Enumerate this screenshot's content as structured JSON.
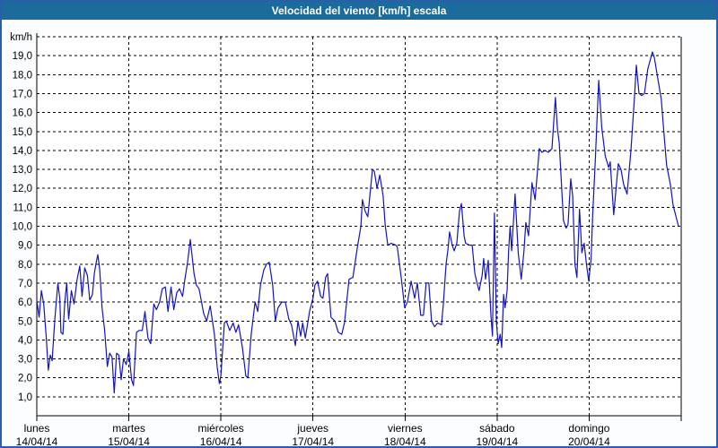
{
  "window": {
    "title": "Velocidad del viento [km/h] escala"
  },
  "colors": {
    "titlebar_bg": "#1c6b9d",
    "titlebar_text": "#ffffff",
    "frame_border": "#2b5dab",
    "page_bg": "#fbfdfe",
    "plot_bg": "#ffffff",
    "grid": "#000000",
    "line": "#1414bb",
    "label_text": "#000000"
  },
  "chart_data": {
    "type": "line",
    "title": "Velocidad del viento [km/h] escala",
    "y_unit_label": "km/h",
    "ylim": [
      0,
      20
    ],
    "xlim_hours": [
      0,
      168
    ],
    "grid": "dashed horizontal every 1 km/h, dashed vertical at each midnight",
    "legend_position": "none",
    "y_ticks": [
      {
        "value": 19,
        "label": "19,0"
      },
      {
        "value": 18,
        "label": "18,0"
      },
      {
        "value": 17,
        "label": "17,0"
      },
      {
        "value": 16,
        "label": "16,0"
      },
      {
        "value": 15,
        "label": "15,0"
      },
      {
        "value": 14,
        "label": "14,0"
      },
      {
        "value": 13,
        "label": "13,0"
      },
      {
        "value": 12,
        "label": "12,0"
      },
      {
        "value": 11,
        "label": "11,0"
      },
      {
        "value": 10,
        "label": "10,0"
      },
      {
        "value": 9,
        "label": "9,0"
      },
      {
        "value": 8,
        "label": "8,0"
      },
      {
        "value": 7,
        "label": "7,0"
      },
      {
        "value": 6,
        "label": "6,0"
      },
      {
        "value": 5,
        "label": "5,0"
      },
      {
        "value": 4,
        "label": "4,0"
      },
      {
        "value": 3,
        "label": "3,0"
      },
      {
        "value": 2,
        "label": "2,0"
      },
      {
        "value": 1,
        "label": "1,0"
      }
    ],
    "days": [
      {
        "name": "lunes",
        "date": "14/04/14"
      },
      {
        "name": "martes",
        "date": "15/04/14"
      },
      {
        "name": "miércoles",
        "date": "16/04/14"
      },
      {
        "name": "jueves",
        "date": "17/04/14"
      },
      {
        "name": "viernes",
        "date": "18/04/14"
      },
      {
        "name": "sábado",
        "date": "19/04/14"
      },
      {
        "name": "domingo",
        "date": "20/04/14"
      }
    ],
    "series": [
      {
        "name": "velocidad del viento",
        "unit": "km/h",
        "color": "#1414bb",
        "points_hour_value": [
          [
            0,
            6.1
          ],
          [
            0.6,
            5.2
          ],
          [
            1.2,
            6.6
          ],
          [
            1.8,
            5.9
          ],
          [
            2.4,
            4.3
          ],
          [
            3,
            2.4
          ],
          [
            3.5,
            3.2
          ],
          [
            4,
            2.9
          ],
          [
            4.7,
            5.1
          ],
          [
            5.5,
            7.0
          ],
          [
            6,
            6.2
          ],
          [
            6.3,
            4.4
          ],
          [
            6.8,
            4.3
          ],
          [
            7.3,
            6.0
          ],
          [
            7.8,
            7.0
          ],
          [
            8.3,
            5.1
          ],
          [
            9,
            6.6
          ],
          [
            9.7,
            5.9
          ],
          [
            10.5,
            7.2
          ],
          [
            11.2,
            7.9
          ],
          [
            11.8,
            6.3
          ],
          [
            12.5,
            7.8
          ],
          [
            13.2,
            7.4
          ],
          [
            13.8,
            6.1
          ],
          [
            14.5,
            6.4
          ],
          [
            15,
            7.5
          ],
          [
            15.5,
            8.1
          ],
          [
            15.9,
            8.5
          ],
          [
            16.4,
            7.7
          ],
          [
            17,
            5.7
          ],
          [
            17.7,
            4.5
          ],
          [
            18.4,
            2.6
          ],
          [
            19,
            3.3
          ],
          [
            19.6,
            3.1
          ],
          [
            20.2,
            1.2
          ],
          [
            20.8,
            3.3
          ],
          [
            21.4,
            3.2
          ],
          [
            22,
            1.9
          ],
          [
            22.6,
            3.0
          ],
          [
            23.3,
            2.7
          ],
          [
            24,
            3.4
          ],
          [
            24.7,
            1.9
          ],
          [
            25.2,
            1.6
          ],
          [
            26,
            4.4
          ],
          [
            26.7,
            4.5
          ],
          [
            27.5,
            4.5
          ],
          [
            28.2,
            5.5
          ],
          [
            29,
            4.1
          ],
          [
            29.7,
            3.8
          ],
          [
            30.5,
            5.9
          ],
          [
            31.2,
            5.6
          ],
          [
            32,
            6.0
          ],
          [
            32.7,
            6.7
          ],
          [
            33.5,
            6.8
          ],
          [
            34.2,
            5.5
          ],
          [
            35,
            6.8
          ],
          [
            35.7,
            5.6
          ],
          [
            36.5,
            6.5
          ],
          [
            37.2,
            6.7
          ],
          [
            38,
            6.3
          ],
          [
            38.6,
            7.2
          ],
          [
            39.3,
            8.1
          ],
          [
            40,
            9.3
          ],
          [
            41,
            7.5
          ],
          [
            41.6,
            6.9
          ],
          [
            42.3,
            6.7
          ],
          [
            43.5,
            5.4
          ],
          [
            44.3,
            5.0
          ],
          [
            45.2,
            5.8
          ],
          [
            46.3,
            4.3
          ],
          [
            47,
            2.6
          ],
          [
            47.6,
            1.7
          ],
          [
            48,
            2.1
          ],
          [
            48.9,
            4.9
          ],
          [
            49.4,
            5.0
          ],
          [
            50.3,
            4.5
          ],
          [
            51.2,
            4.9
          ],
          [
            51.9,
            4.4
          ],
          [
            52.6,
            4.8
          ],
          [
            53.6,
            3.6
          ],
          [
            54.5,
            2.1
          ],
          [
            55,
            2.0
          ],
          [
            55.9,
            4.3
          ],
          [
            56.9,
            6.0
          ],
          [
            57.6,
            5.5
          ],
          [
            58.3,
            6.9
          ],
          [
            59.2,
            7.7
          ],
          [
            59.9,
            8.0
          ],
          [
            60.6,
            8.1
          ],
          [
            61.5,
            6.9
          ],
          [
            62.2,
            5.0
          ],
          [
            62.9,
            5.7
          ],
          [
            63.9,
            6.0
          ],
          [
            64.8,
            6.0
          ],
          [
            65.7,
            5.1
          ],
          [
            66.4,
            4.8
          ],
          [
            67.4,
            3.7
          ],
          [
            68.1,
            5.0
          ],
          [
            68.8,
            4.2
          ],
          [
            69.3,
            4.9
          ],
          [
            70,
            4.1
          ],
          [
            71.1,
            5.5
          ],
          [
            72,
            6.2
          ],
          [
            72.5,
            6.9
          ],
          [
            73.2,
            7.1
          ],
          [
            74,
            6.3
          ],
          [
            74.6,
            6.2
          ],
          [
            75.3,
            7.3
          ],
          [
            75.8,
            7.5
          ],
          [
            76.7,
            5.2
          ],
          [
            77.7,
            5.0
          ],
          [
            78.6,
            4.4
          ],
          [
            79.5,
            4.3
          ],
          [
            80.2,
            4.9
          ],
          [
            81.4,
            7.2
          ],
          [
            82.4,
            7.3
          ],
          [
            83.5,
            8.8
          ],
          [
            84.5,
            10.0
          ],
          [
            84.9,
            11.4
          ],
          [
            85.6,
            10.8
          ],
          [
            86.3,
            10.5
          ],
          [
            87.5,
            13.0
          ],
          [
            88,
            12.9
          ],
          [
            88.7,
            12.0
          ],
          [
            89.4,
            12.7
          ],
          [
            90.3,
            11.6
          ],
          [
            90.8,
            10.1
          ],
          [
            91.5,
            9.0
          ],
          [
            92.4,
            9.1
          ],
          [
            93.6,
            9.0
          ],
          [
            94,
            8.9
          ],
          [
            95,
            7.3
          ],
          [
            95.9,
            5.7
          ],
          [
            96.6,
            6.0
          ],
          [
            97.6,
            7.1
          ],
          [
            98.5,
            6.2
          ],
          [
            99.2,
            7.0
          ],
          [
            100.1,
            5.3
          ],
          [
            100.8,
            5.3
          ],
          [
            101.5,
            7.0
          ],
          [
            102.2,
            7.0
          ],
          [
            102.9,
            5.0
          ],
          [
            103.7,
            4.7
          ],
          [
            104.5,
            4.9
          ],
          [
            105.5,
            4.8
          ],
          [
            106,
            5.9
          ],
          [
            106.7,
            8.0
          ],
          [
            107.2,
            8.8
          ],
          [
            107.6,
            9.7
          ],
          [
            108.3,
            9.0
          ],
          [
            108.8,
            8.7
          ],
          [
            109.5,
            9.1
          ],
          [
            110.2,
            10.8
          ],
          [
            110.7,
            11.2
          ],
          [
            111.4,
            9.5
          ],
          [
            111.8,
            9.1
          ],
          [
            112.8,
            9.0
          ],
          [
            113.5,
            9.0
          ],
          [
            114.2,
            7.5
          ],
          [
            114.9,
            6.9
          ],
          [
            115.3,
            6.6
          ],
          [
            116.1,
            7.4
          ],
          [
            116.5,
            8.3
          ],
          [
            117,
            7.2
          ],
          [
            117.7,
            8.2
          ],
          [
            118.4,
            5.3
          ],
          [
            118.8,
            4.2
          ],
          [
            119.3,
            10.7
          ],
          [
            119.8,
            5.0
          ],
          [
            120.3,
            3.8
          ],
          [
            120.8,
            4.3
          ],
          [
            121.2,
            3.6
          ],
          [
            121.7,
            6.4
          ],
          [
            122.1,
            5.7
          ],
          [
            122.6,
            6.6
          ],
          [
            123,
            8.7
          ],
          [
            123.4,
            10.0
          ],
          [
            123.8,
            8.7
          ],
          [
            124.7,
            11.7
          ],
          [
            125.5,
            8.6
          ],
          [
            126.3,
            7.2
          ],
          [
            127,
            8.7
          ],
          [
            127.5,
            10.2
          ],
          [
            128.2,
            9.5
          ],
          [
            129.1,
            12.3
          ],
          [
            129.9,
            11.4
          ],
          [
            131,
            14.1
          ],
          [
            131.7,
            13.9
          ],
          [
            132.5,
            14.0
          ],
          [
            133.4,
            13.9
          ],
          [
            134.3,
            14.1
          ],
          [
            135.2,
            16.8
          ],
          [
            135.7,
            15.2
          ],
          [
            136.2,
            14.4
          ],
          [
            137.3,
            10.3
          ],
          [
            138,
            9.9
          ],
          [
            138.5,
            10.1
          ],
          [
            139.2,
            12.5
          ],
          [
            139.7,
            11.6
          ],
          [
            140.3,
            8.0
          ],
          [
            140.8,
            7.3
          ],
          [
            141.5,
            10.9
          ],
          [
            142.1,
            8.6
          ],
          [
            142.7,
            9.1
          ],
          [
            143.3,
            8.0
          ],
          [
            143.9,
            7.1
          ],
          [
            144.5,
            8.3
          ],
          [
            144.9,
            10.5
          ],
          [
            145.6,
            13.5
          ],
          [
            146.5,
            17.7
          ],
          [
            147.3,
            15.2
          ],
          [
            148.2,
            13.7
          ],
          [
            149.1,
            13.1
          ],
          [
            149.5,
            13.4
          ],
          [
            150.4,
            10.6
          ],
          [
            151.6,
            13.3
          ],
          [
            152.3,
            13.0
          ],
          [
            153,
            12.2
          ],
          [
            153.9,
            11.7
          ],
          [
            154.9,
            14.0
          ],
          [
            155.8,
            16.8
          ],
          [
            156.3,
            18.5
          ],
          [
            157,
            17.0
          ],
          [
            157.7,
            16.9
          ],
          [
            158.4,
            17.0
          ],
          [
            159.3,
            18.3
          ],
          [
            160.5,
            19.2
          ],
          [
            161,
            18.9
          ],
          [
            161.9,
            17.8
          ],
          [
            162.8,
            16.7
          ],
          [
            163.5,
            14.9
          ],
          [
            164.2,
            13.2
          ],
          [
            165.2,
            12.2
          ],
          [
            165.9,
            11.1
          ],
          [
            166.4,
            10.7
          ],
          [
            167.3,
            10.0
          ]
        ]
      }
    ]
  }
}
